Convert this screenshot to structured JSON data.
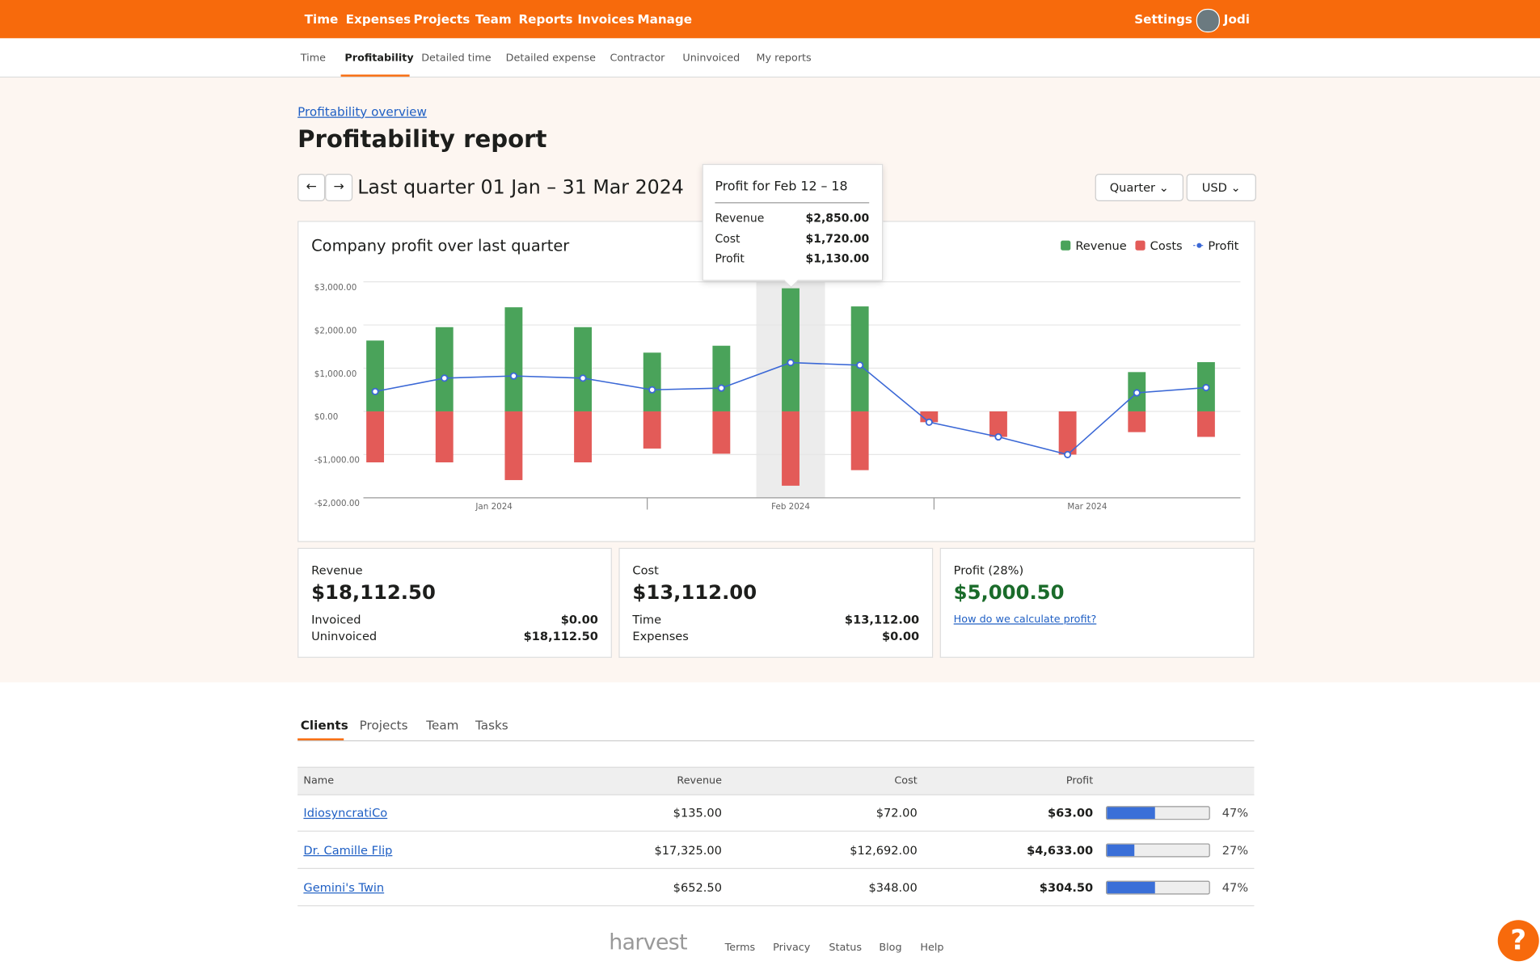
{
  "nav": {
    "items": [
      "Time",
      "Expenses",
      "Projects",
      "Team",
      "Reports",
      "Invoices",
      "Manage"
    ],
    "settings": "Settings",
    "user": "Jodi"
  },
  "subnav": {
    "items": [
      "Time",
      "Profitability",
      "Detailed time",
      "Detailed expense",
      "Contractor",
      "Uninvoiced",
      "My reports"
    ],
    "active": 1
  },
  "header": {
    "breadcrumb": "Profitability overview",
    "title": "Profitability report",
    "period": "Last quarter 01 Jan – 31 Mar 2024",
    "dropdowns": [
      "Quarter",
      "USD"
    ]
  },
  "chart_data": {
    "type": "bar",
    "title": "Company profit over last quarter",
    "categories": [
      null,
      null,
      null,
      null,
      null,
      null,
      null,
      null,
      null,
      null,
      null,
      null,
      null
    ],
    "month_labels": [
      "Jan 2024",
      "Feb 2024",
      "Mar 2024"
    ],
    "series": [
      {
        "name": "Revenue",
        "color": "#4aa35a",
        "values": [
          1640,
          1950,
          2410,
          1950,
          1360,
          1520,
          2850,
          2430,
          0,
          0,
          0,
          910,
          1140
        ]
      },
      {
        "name": "Costs",
        "color": "#e35b58",
        "values": [
          -1180,
          -1180,
          -1590,
          -1180,
          -860,
          -980,
          -1720,
          -1360,
          -250,
          -590,
          -1000,
          -480,
          -590
        ]
      },
      {
        "name": "Profit",
        "type": "line",
        "color": "#3b68d6",
        "values": [
          460,
          770,
          820,
          770,
          500,
          540,
          1130,
          1070,
          -250,
          -590,
          -1000,
          430,
          550
        ]
      }
    ],
    "ylim": [
      -2000,
      3000
    ],
    "yticks": [
      {
        "value": -2000,
        "label": "-$2,000.00"
      },
      {
        "value": -1000,
        "label": "-$1,000.00"
      },
      {
        "value": 0,
        "label": "$0.00"
      },
      {
        "value": 1000,
        "label": "$1,000.00"
      },
      {
        "value": 2000,
        "label": "$2,000.00"
      },
      {
        "value": 3000,
        "label": "$3,000.00"
      }
    ],
    "grid": true,
    "legend": "top-right",
    "highlight": 6,
    "tooltip": {
      "title": "Profit for Feb 12 – 18",
      "rows": [
        {
          "label": "Revenue",
          "value": "$2,850.00"
        },
        {
          "label": "Cost",
          "value": "$1,720.00"
        },
        {
          "label": "Profit",
          "value": "$1,130.00"
        }
      ]
    }
  },
  "cards": [
    {
      "label": "Revenue",
      "value": "$18,112.50",
      "rows": [
        {
          "label": "Invoiced",
          "value": "$0.00"
        },
        {
          "label": "Uninvoiced",
          "value": "$18,112.50"
        }
      ]
    },
    {
      "label": "Cost",
      "value": "$13,112.00",
      "rows": [
        {
          "label": "Time",
          "value": "$13,112.00"
        },
        {
          "label": "Expenses",
          "value": "$0.00"
        }
      ]
    },
    {
      "label": "Profit (28%)",
      "value": "$5,000.50",
      "link": "How do we calculate profit?"
    }
  ],
  "tabs": {
    "items": [
      "Clients",
      "Projects",
      "Team",
      "Tasks"
    ],
    "active": 0
  },
  "table": {
    "columns": [
      "Name",
      "Revenue",
      "Cost",
      "Profit"
    ],
    "rows": [
      {
        "name": "IdiosyncratiCo",
        "revenue": "$135.00",
        "cost": "$72.00",
        "profit": "$63.00",
        "share": 47,
        "share_label": "47%"
      },
      {
        "name": "Dr. Camille Flip",
        "revenue": "$17,325.00",
        "cost": "$12,692.00",
        "profit": "$4,633.00",
        "share": 27,
        "share_label": "27%"
      },
      {
        "name": "Gemini's Twin",
        "revenue": "$652.50",
        "cost": "$348.00",
        "profit": "$304.50",
        "share": 47,
        "share_label": "47%"
      }
    ]
  },
  "footer": {
    "logo": "harvest",
    "links": [
      "Terms",
      "Privacy",
      "Status",
      "Blog",
      "Help"
    ],
    "help_icon": "?"
  }
}
